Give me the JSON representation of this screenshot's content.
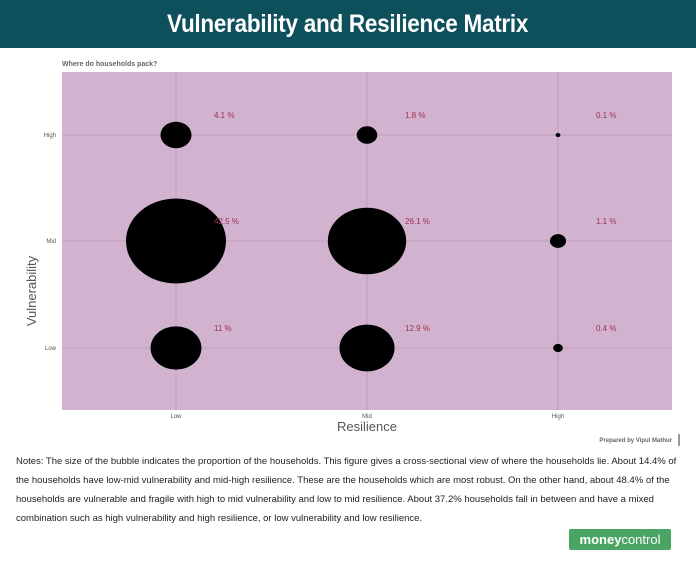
{
  "header": {
    "title": "Vulnerability and Resilience Matrix"
  },
  "chart_data": {
    "type": "scatter",
    "title": "",
    "subtitle": "Where do households pack?",
    "xlabel": "Resilience",
    "ylabel": "Vulnerability",
    "x_categories": [
      "Low",
      "Mid",
      "High"
    ],
    "y_categories": [
      "Low",
      "Mid",
      "High"
    ],
    "bubble_size_meaning": "proportion of households (%)",
    "points": [
      {
        "x": "Low",
        "y": "High",
        "value": 4.1,
        "label": "4.1 %"
      },
      {
        "x": "Mid",
        "y": "High",
        "value": 1.8,
        "label": "1.8 %"
      },
      {
        "x": "High",
        "y": "High",
        "value": 0.1,
        "label": "0.1 %"
      },
      {
        "x": "Low",
        "y": "Mid",
        "value": 42.5,
        "label": "42.5 %"
      },
      {
        "x": "Mid",
        "y": "Mid",
        "value": 26.1,
        "label": "26.1 %"
      },
      {
        "x": "High",
        "y": "Mid",
        "value": 1.1,
        "label": "1.1 %"
      },
      {
        "x": "Low",
        "y": "Low",
        "value": 11,
        "label": "11 %"
      },
      {
        "x": "Mid",
        "y": "Low",
        "value": 12.9,
        "label": "12.9 %"
      },
      {
        "x": "High",
        "y": "Low",
        "value": 0.4,
        "label": "0.4 %"
      }
    ],
    "credit": "Prepared by Vipul Mathur",
    "colors": {
      "panel": "#d1b3d0",
      "grid": "#b89ab7",
      "bubble": "#000000",
      "label": "#a0304a"
    },
    "grid": true
  },
  "notes": "Notes: The size of the bubble indicates the proportion of the households. This figure gives a cross-sectional view of where the households lie. About 14.4% of the households have low-mid vulnerability and mid-high resilience. These are the households which are most robust. On the other hand, about 48.4% of the households are vulnerable and fragile with high to mid vulnerability and low to mid resilience. About 37.2% households fall in between and have a mixed combination such as high vulnerability and high resilience, or low vulnerability and low resilience.",
  "logo": {
    "part1": "money",
    "part2": "control"
  }
}
